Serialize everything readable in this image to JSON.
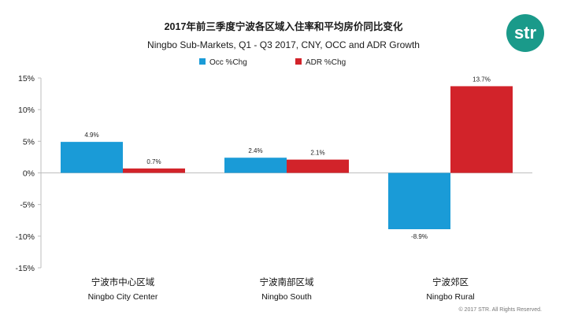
{
  "title_cn": "2017年前三季度宁波各区域入住率和平均房价同比变化",
  "title_en": "Ningbo Sub-Markets, Q1 - Q3 2017, CNY, OCC and ADR Growth",
  "logo": "str",
  "copyright": "© 2017 STR. All Rights Reserved.",
  "chart_data": {
    "type": "bar",
    "title": "2017年前三季度宁波各区域入住率和平均房价同比变化",
    "subtitle": "Ningbo Sub-Markets, Q1 - Q3 2017, CNY, OCC and ADR Growth",
    "categories": [
      {
        "cn": "宁波市中心区域",
        "en": "Ningbo City Center"
      },
      {
        "cn": "宁波南部区域",
        "en": "Ningbo South"
      },
      {
        "cn": "宁波郊区",
        "en": "Ningbo Rural"
      }
    ],
    "series": [
      {
        "name": "Occ %Chg",
        "color": "#1a9bd7",
        "values": [
          4.9,
          2.4,
          -8.9
        ],
        "labels": [
          "4.9%",
          "2.4%",
          "-8.9%"
        ]
      },
      {
        "name": "ADR %Chg",
        "color": "#d2232a",
        "values": [
          0.7,
          2.1,
          13.7
        ],
        "labels": [
          "0.7%",
          "2.1%",
          "13.7%"
        ]
      }
    ],
    "ylim": [
      -15,
      15
    ],
    "yticks": [
      15,
      10,
      5,
      0,
      -5,
      -10,
      -15
    ],
    "ytick_labels": [
      "15%",
      "10%",
      "5%",
      "0%",
      "-5%",
      "-10%",
      "-15%"
    ],
    "legend_position": "top-center",
    "grid": false
  }
}
